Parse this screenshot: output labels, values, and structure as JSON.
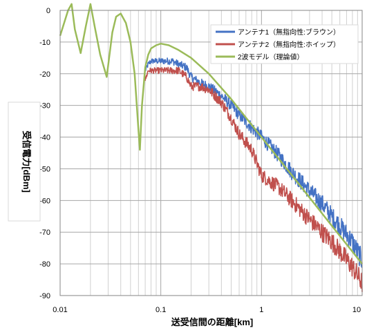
{
  "chart_data": {
    "type": "line",
    "title": "",
    "xlabel": "送受信間の距離[km]",
    "ylabel": "受信電力[dBm]",
    "x_scale": "log",
    "xlim": [
      0.01,
      10
    ],
    "ylim": [
      -90,
      0
    ],
    "x_tick_labels": [
      "0.01",
      "0.1",
      "1",
      "10"
    ],
    "x_tick_values": [
      0.01,
      0.1,
      1,
      10
    ],
    "y_tick_labels": [
      "0",
      "-10",
      "-20",
      "-30",
      "-40",
      "-50",
      "-60",
      "-70",
      "-80",
      "-90"
    ],
    "y_tick_values": [
      0,
      -10,
      -20,
      -30,
      -40,
      -50,
      -60,
      -70,
      -80,
      -90
    ],
    "grid": "log-minor vertical, major horizontal",
    "legend_position": "top-right",
    "series": [
      {
        "name": "アンテナ1（無指向性:ブラウン）",
        "color": "#4472C4",
        "x": [
          0.07,
          0.075,
          0.08,
          0.1,
          0.13,
          0.15,
          0.18,
          0.2,
          0.25,
          0.3,
          0.4,
          0.5,
          0.6,
          0.8,
          1.0,
          1.5,
          2.0,
          3.0,
          4.0,
          5.0,
          6.0,
          8.0,
          10.0
        ],
        "y": [
          -19,
          -17,
          -16,
          -16,
          -16,
          -17,
          -18,
          -21,
          -23,
          -24,
          -27,
          -30,
          -33,
          -37,
          -40,
          -46,
          -51,
          -57,
          -61,
          -65,
          -68,
          -73,
          -79
        ]
      },
      {
        "name": "アンテナ2（無指向性:ホイップ）",
        "color": "#C0504D",
        "x": [
          0.07,
          0.075,
          0.08,
          0.1,
          0.13,
          0.15,
          0.18,
          0.2,
          0.25,
          0.3,
          0.4,
          0.5,
          0.6,
          0.8,
          1.0,
          1.5,
          2.0,
          3.0,
          4.0,
          5.0,
          6.0,
          8.0,
          10.0
        ],
        "y": [
          -22,
          -19,
          -19,
          -19,
          -19,
          -19,
          -21,
          -24,
          -24,
          -25,
          -29,
          -34,
          -39,
          -44,
          -52,
          -56,
          -60,
          -66,
          -70,
          -73,
          -76,
          -81,
          -86
        ]
      },
      {
        "name": "2波モデル（理論値）",
        "color": "#9BBB59",
        "x": [
          0.01,
          0.012,
          0.013,
          0.014,
          0.016,
          0.018,
          0.02,
          0.022,
          0.025,
          0.029,
          0.033,
          0.036,
          0.04,
          0.045,
          0.05,
          0.055,
          0.06,
          0.062,
          0.065,
          0.07,
          0.075,
          0.08,
          0.09,
          0.1,
          0.12,
          0.15,
          0.2,
          0.3,
          0.5,
          1.0,
          2.0,
          5.0,
          10.0
        ],
        "y": [
          -8,
          0,
          2,
          -6,
          -13.5,
          -5,
          2,
          -5,
          -14,
          -21,
          -7,
          -2,
          -1,
          -4,
          -10,
          -20,
          -38,
          -44,
          -30,
          -18,
          -14,
          -12,
          -11,
          -10.5,
          -11,
          -12.5,
          -15,
          -20,
          -28,
          -40,
          -52,
          -68,
          -80
        ]
      }
    ]
  }
}
